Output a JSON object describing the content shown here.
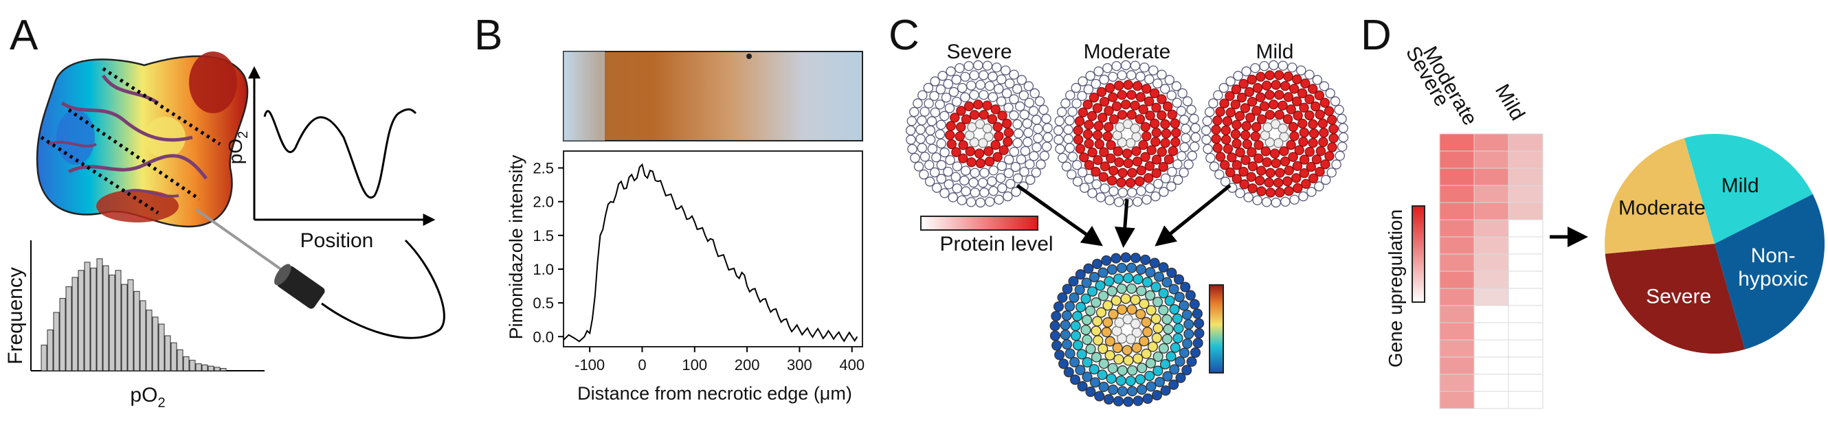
{
  "panels": {
    "A": {
      "letter": "A",
      "po2_axis_label": "pO2",
      "position_axis_label": "Position",
      "frequency_axis_label": "Frequency",
      "histogram_x_label": "pO2",
      "histogram_values": [
        0.22,
        0.35,
        0.5,
        0.62,
        0.72,
        0.8,
        0.86,
        0.93,
        0.88,
        0.96,
        0.9,
        0.82,
        0.86,
        0.74,
        0.78,
        0.68,
        0.6,
        0.52,
        0.46,
        0.4,
        0.3,
        0.24,
        0.18,
        0.12,
        0.09,
        0.06,
        0.05,
        0.04,
        0.03,
        0.02
      ]
    },
    "B": {
      "letter": "B",
      "chart_data": {
        "type": "line",
        "xlabel": "Distance from necrotic edge (μm)",
        "ylabel": "Pimonidazole intensity",
        "xlim": [
          -150,
          420
        ],
        "ylim": [
          -0.15,
          2.75
        ],
        "xticks": [
          -100,
          0,
          100,
          200,
          300,
          400
        ],
        "yticks": [
          0.0,
          0.5,
          1.0,
          1.5,
          2.0,
          2.5
        ],
        "series": [
          {
            "x": [
              -150,
              -130,
              -110,
              -100,
              -90,
              -80,
              -70,
              -60,
              -50,
              -40,
              -30,
              -20,
              -10,
              0,
              10,
              20,
              30,
              40,
              50,
              60,
              70,
              80,
              90,
              100,
              110,
              120,
              130,
              140,
              150,
              160,
              170,
              180,
              190,
              200,
              210,
              220,
              230,
              240,
              250,
              260,
              270,
              280,
              290,
              300,
              310,
              320,
              330,
              340,
              350,
              360,
              370,
              380,
              390,
              400,
              410
            ],
            "values": [
              -0.05,
              -0.02,
              0.0,
              0.05,
              0.6,
              1.5,
              1.8,
              2.0,
              2.1,
              2.3,
              2.2,
              2.4,
              2.35,
              2.55,
              2.35,
              2.45,
              2.3,
              2.2,
              2.1,
              2.0,
              1.9,
              1.85,
              1.75,
              1.7,
              1.6,
              1.5,
              1.45,
              1.3,
              1.2,
              1.1,
              1.0,
              0.9,
              0.95,
              0.75,
              0.7,
              0.6,
              0.55,
              0.45,
              0.4,
              0.3,
              0.25,
              0.15,
              0.12,
              0.1,
              0.08,
              0.05,
              0.06,
              0.05,
              0.02,
              0.03,
              0.02,
              -0.01,
              0.0,
              0.0,
              0.0
            ]
          }
        ]
      }
    },
    "C": {
      "letter": "C",
      "titles": [
        "Severe",
        "Moderate",
        "Mild"
      ],
      "protein_label": "Protein level",
      "colors": {
        "red": "#e02020",
        "node_outline": "#5a5a7a",
        "blue": "#1f6fae"
      }
    },
    "D": {
      "letter": "D",
      "column_labels": [
        "Severe",
        "Moderate",
        "Mild"
      ],
      "gene_label": "Gene upregulation",
      "heatmap_rows": 16,
      "heatmap_intensity": [
        [
          0.72,
          0.55,
          0.35
        ],
        [
          0.68,
          0.5,
          0.32
        ],
        [
          0.7,
          0.58,
          0.3
        ],
        [
          0.66,
          0.45,
          0.28
        ],
        [
          0.64,
          0.52,
          0.3
        ],
        [
          0.6,
          0.35,
          0
        ],
        [
          0.58,
          0.3,
          0
        ],
        [
          0.55,
          0.28,
          0
        ],
        [
          0.6,
          0.25,
          0
        ],
        [
          0.55,
          0.2,
          0
        ],
        [
          0.5,
          0,
          0
        ],
        [
          0.52,
          0,
          0
        ],
        [
          0.48,
          0,
          0
        ],
        [
          0.5,
          0,
          0
        ],
        [
          0.45,
          0,
          0
        ],
        [
          0.48,
          0,
          0
        ]
      ],
      "chart_data": {
        "type": "pie",
        "labels": [
          "Mild",
          "Non-hypoxic",
          "Severe",
          "Moderate"
        ],
        "values": [
          22,
          28,
          28,
          22
        ],
        "colors": [
          "#29d4d4",
          "#0b5d9a",
          "#8c1d19",
          "#edc15f"
        ]
      },
      "pie_label_nonhypoxic": [
        "Non-",
        "hypoxic"
      ]
    }
  }
}
